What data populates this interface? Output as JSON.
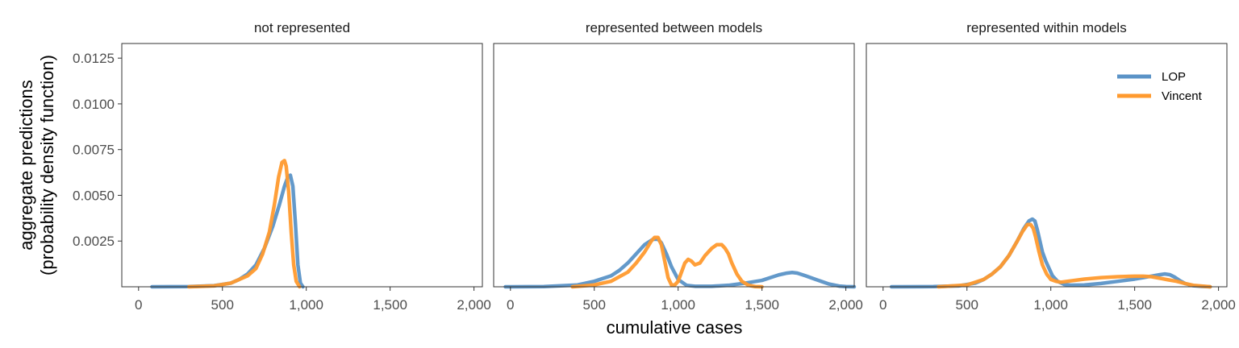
{
  "chart_data": {
    "type": "line",
    "xlabel": "cumulative cases",
    "ylabel_lines": [
      "aggregate predictions",
      "(probability density function)"
    ],
    "xlim": [
      -100,
      2050
    ],
    "ylim": [
      0,
      0.0133
    ],
    "x_ticks": [
      0,
      500,
      1000,
      1500,
      2000
    ],
    "x_tick_labels": [
      "0",
      "500",
      "1,000",
      "1,500",
      "2,000"
    ],
    "y_ticks": [
      0.0025,
      0.005,
      0.0075,
      0.01,
      0.0125
    ],
    "y_tick_labels": [
      "0.0025",
      "0.0050",
      "0.0075",
      "0.0100",
      "0.0125"
    ],
    "colors": {
      "LOP": "#5b93c7",
      "Vincent": "#ff9a2e"
    },
    "legend": {
      "placement": "top-right",
      "panel": 2,
      "entries": [
        "LOP",
        "Vincent"
      ]
    },
    "panels": [
      {
        "title": "not represented",
        "series": [
          {
            "name": "LOP",
            "x": [
              80,
              300,
              450,
              550,
              600,
              650,
              700,
              750,
              800,
              840,
              870,
              890,
              905,
              920,
              935,
              950,
              965,
              980
            ],
            "y": [
              0,
              1e-05,
              6e-05,
              0.0002,
              0.0004,
              0.0007,
              0.0012,
              0.0021,
              0.0033,
              0.0045,
              0.0055,
              0.006,
              0.0061,
              0.0055,
              0.0035,
              0.0012,
              0.0002,
              0
            ]
          },
          {
            "name": "Vincent",
            "x": [
              300,
              450,
              550,
              600,
              650,
              700,
              740,
              780,
              810,
              835,
              855,
              870,
              880,
              895,
              910,
              925,
              940,
              960
            ],
            "y": [
              0,
              5e-05,
              0.0002,
              0.0004,
              0.0006,
              0.001,
              0.0018,
              0.003,
              0.0045,
              0.006,
              0.0068,
              0.0069,
              0.0066,
              0.0052,
              0.003,
              0.0012,
              0.0003,
              0
            ]
          }
        ]
      },
      {
        "title": "represented between models",
        "series": [
          {
            "name": "LOP",
            "x": [
              -30,
              200,
              400,
              500,
              600,
              650,
              700,
              750,
              800,
              850,
              880,
              900,
              930,
              960,
              1000,
              1050,
              1100,
              1200,
              1300,
              1400,
              1500,
              1550,
              1600,
              1650,
              1680,
              1710,
              1760,
              1820,
              1900,
              1960,
              2000,
              2050
            ],
            "y": [
              0,
              1e-05,
              0.0001,
              0.0003,
              0.0006,
              0.0009,
              0.0013,
              0.0018,
              0.0023,
              0.0026,
              0.0026,
              0.0024,
              0.0018,
              0.0011,
              0.0004,
              8e-05,
              3e-05,
              3e-05,
              8e-05,
              0.0002,
              0.00035,
              0.0005,
              0.00065,
              0.00075,
              0.00078,
              0.00075,
              0.0006,
              0.0004,
              0.00015,
              4e-05,
              1e-05,
              0
            ]
          },
          {
            "name": "Vincent",
            "x": [
              370,
              500,
              600,
              700,
              750,
              800,
              840,
              860,
              880,
              900,
              920,
              940,
              960,
              980,
              1000,
              1020,
              1040,
              1060,
              1080,
              1100,
              1130,
              1160,
              1200,
              1230,
              1260,
              1280,
              1300,
              1320,
              1350,
              1380,
              1420,
              1460,
              1500
            ],
            "y": [
              0,
              0.0001,
              0.0003,
              0.0008,
              0.0013,
              0.0019,
              0.0025,
              0.0027,
              0.0027,
              0.0023,
              0.0014,
              0.0005,
              0.0001,
              0.0001,
              0.0003,
              0.0008,
              0.0013,
              0.0015,
              0.0014,
              0.0012,
              0.0013,
              0.0017,
              0.0021,
              0.0023,
              0.0023,
              0.0021,
              0.0018,
              0.0013,
              0.0007,
              0.0003,
              8e-05,
              1e-05,
              0
            ]
          }
        ]
      },
      {
        "title": "represented within models",
        "series": [
          {
            "name": "LOP",
            "x": [
              50,
              300,
              450,
              550,
              600,
              650,
              700,
              750,
              800,
              840,
              870,
              890,
              905,
              920,
              935,
              950,
              970,
              990,
              1010,
              1040,
              1080,
              1120,
              1200,
              1300,
              1400,
              1500,
              1550,
              1600,
              1650,
              1680,
              1710,
              1740,
              1770,
              1800,
              1850,
              1900,
              1950
            ],
            "y": [
              0,
              1e-05,
              5e-05,
              0.0002,
              0.0004,
              0.0007,
              0.0011,
              0.0017,
              0.0025,
              0.0032,
              0.0036,
              0.0037,
              0.0036,
              0.0031,
              0.0025,
              0.0019,
              0.0014,
              0.001,
              0.0006,
              0.0003,
              0.00013,
              9e-05,
              0.0001,
              0.00018,
              0.0003,
              0.00042,
              0.0005,
              0.00058,
              0.00066,
              0.0007,
              0.00066,
              0.00052,
              0.00033,
              0.00018,
              6e-05,
              2e-05,
              0
            ]
          },
          {
            "name": "Vincent",
            "x": [
              330,
              500,
              600,
              650,
              700,
              750,
              800,
              830,
              860,
              880,
              895,
              910,
              930,
              950,
              975,
              1000,
              1030,
              1060,
              1100,
              1200,
              1300,
              1400,
              1500,
              1550,
              1600,
              1630,
              1660,
              1700,
              1750,
              1800,
              1850,
              1950
            ],
            "y": [
              0,
              0.0001,
              0.0004,
              0.0007,
              0.0011,
              0.0017,
              0.0025,
              0.003,
              0.0034,
              0.0034,
              0.0032,
              0.0027,
              0.0019,
              0.0012,
              0.0007,
              0.0004,
              0.0003,
              0.00025,
              0.0003,
              0.00042,
              0.0005,
              0.00055,
              0.00058,
              0.00058,
              0.00055,
              0.0005,
              0.00045,
              0.00038,
              0.0003,
              0.00018,
              8e-05,
              0
            ]
          }
        ]
      }
    ]
  }
}
